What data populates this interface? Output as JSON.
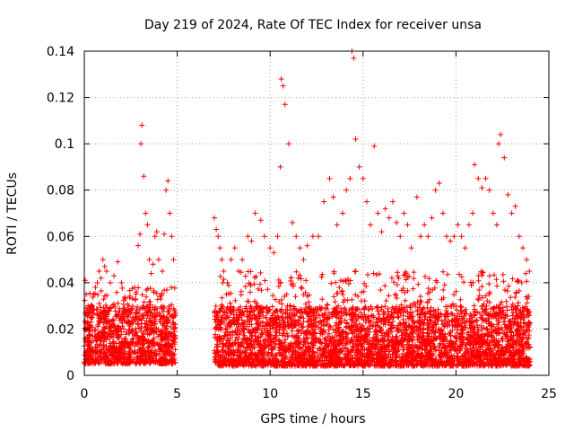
{
  "chart_data": {
    "type": "scatter",
    "title": "Day 219 of 2024, Rate Of TEC Index for receiver unsa",
    "xlabel": "GPS time / hours",
    "ylabel": "ROTI / TECUs",
    "xlim": [
      0,
      25
    ],
    "ylim": [
      0,
      0.14
    ],
    "x_ticks": [
      0,
      5,
      10,
      15,
      20,
      25
    ],
    "y_ticks": [
      0,
      0.02,
      0.04,
      0.06,
      0.08,
      0.1,
      0.12,
      0.14
    ],
    "x_tick_labels": [
      "0",
      "5",
      "10",
      "15",
      "20",
      "25"
    ],
    "y_tick_labels": [
      "0",
      "0.02",
      "0.04",
      "0.06",
      "0.08",
      "0.1",
      "0.12",
      "0.14"
    ],
    "grid": true,
    "marker": "+",
    "color": "#ff0000",
    "series": [
      {
        "x": [
          0.05,
          0.1,
          0.2,
          0.3,
          0.4,
          0.5,
          0.6,
          0.7,
          0.8,
          0.9,
          1.0,
          1.1,
          1.2,
          1.4,
          1.6,
          1.8,
          2.0,
          2.2,
          2.4,
          2.6,
          2.8,
          2.9,
          3.0,
          3.05,
          3.1,
          3.2,
          3.3,
          3.4,
          3.5,
          3.6,
          3.7,
          3.8,
          3.9,
          4.0,
          4.2,
          4.3,
          4.4,
          4.5,
          4.6,
          4.7,
          4.8,
          7.0,
          7.1,
          7.2,
          7.3,
          7.4,
          7.5,
          7.7,
          7.9,
          8.1,
          8.3,
          8.5,
          8.8,
          9.0,
          9.2,
          9.5,
          9.7,
          10.0,
          10.2,
          10.4,
          10.55,
          10.6,
          10.7,
          10.8,
          11.0,
          11.2,
          11.4,
          11.6,
          11.8,
          12.0,
          12.3,
          12.6,
          12.9,
          13.2,
          13.4,
          13.6,
          13.9,
          14.1,
          14.3,
          14.4,
          14.5,
          14.6,
          14.8,
          15.0,
          15.2,
          15.4,
          15.6,
          15.8,
          16.0,
          16.2,
          16.4,
          16.6,
          16.8,
          17.0,
          17.2,
          17.4,
          17.6,
          17.9,
          18.1,
          18.3,
          18.5,
          18.7,
          18.9,
          19.1,
          19.3,
          19.5,
          19.7,
          19.9,
          20.1,
          20.3,
          20.5,
          20.7,
          20.9,
          21.0,
          21.2,
          21.4,
          21.6,
          21.8,
          22.0,
          22.2,
          22.3,
          22.4,
          22.6,
          22.8,
          23.0,
          23.2,
          23.4,
          23.6,
          23.8,
          23.95
        ],
        "y": [
          0.041,
          0.035,
          0.03,
          0.028,
          0.03,
          0.035,
          0.038,
          0.04,
          0.045,
          0.042,
          0.05,
          0.047,
          0.045,
          0.04,
          0.043,
          0.049,
          0.04,
          0.033,
          0.03,
          0.033,
          0.036,
          0.056,
          0.061,
          0.1,
          0.108,
          0.086,
          0.07,
          0.065,
          0.05,
          0.044,
          0.048,
          0.06,
          0.062,
          0.05,
          0.045,
          0.061,
          0.08,
          0.084,
          0.07,
          0.06,
          0.05,
          0.068,
          0.063,
          0.06,
          0.055,
          0.05,
          0.045,
          0.04,
          0.05,
          0.055,
          0.045,
          0.05,
          0.06,
          0.058,
          0.07,
          0.067,
          0.06,
          0.055,
          0.053,
          0.06,
          0.09,
          0.128,
          0.125,
          0.117,
          0.1,
          0.066,
          0.06,
          0.055,
          0.05,
          0.056,
          0.06,
          0.06,
          0.075,
          0.085,
          0.077,
          0.065,
          0.07,
          0.08,
          0.085,
          0.14,
          0.137,
          0.102,
          0.09,
          0.085,
          0.075,
          0.065,
          0.099,
          0.07,
          0.062,
          0.072,
          0.068,
          0.075,
          0.066,
          0.06,
          0.07,
          0.065,
          0.055,
          0.077,
          0.06,
          0.065,
          0.06,
          0.068,
          0.08,
          0.083,
          0.07,
          0.06,
          0.058,
          0.06,
          0.065,
          0.06,
          0.055,
          0.065,
          0.07,
          0.091,
          0.085,
          0.081,
          0.085,
          0.08,
          0.07,
          0.065,
          0.1,
          0.104,
          0.094,
          0.078,
          0.07,
          0.073,
          0.06,
          0.055,
          0.05,
          0.045
        ]
      }
    ],
    "dense_band": {
      "segments": [
        {
          "x_start": 0.0,
          "x_end": 4.9,
          "y_min": 0.005,
          "y_max": 0.038
        },
        {
          "x_start": 7.0,
          "x_end": 24.0,
          "y_min": 0.004,
          "y_max": 0.045
        }
      ]
    }
  }
}
